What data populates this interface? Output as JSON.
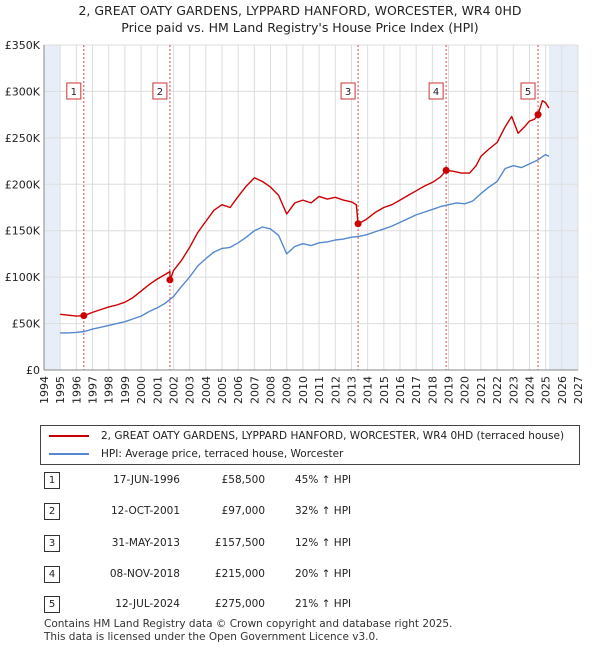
{
  "title_line1": "2, GREAT OATY GARDENS, LYPPARD HANFORD, WORCESTER, WR4 0HD",
  "title_line2": "Price paid vs. HM Land Registry's House Price Index (HPI)",
  "legend": {
    "property_label": "2, GREAT OATY GARDENS, LYPPARD HANFORD, WORCESTER, WR4 0HD (terraced house)",
    "hpi_label": "HPI: Average price, terraced house, Worcester"
  },
  "colors": {
    "property_line": "#cc0000",
    "hpi_line": "#5588cc",
    "shade": "#e8eef8",
    "vline": "#dd4444"
  },
  "chart_data": {
    "type": "line",
    "title": "Price paid vs. HM Land Registry's House Price Index (HPI)",
    "xlim": [
      1994,
      2027
    ],
    "ylim": [
      0,
      350000
    ],
    "y_ticks": [
      0,
      50000,
      100000,
      150000,
      200000,
      250000,
      300000,
      350000
    ],
    "y_tick_labels": [
      "£0",
      "£50K",
      "£100K",
      "£150K",
      "£200K",
      "£250K",
      "£300K",
      "£350K"
    ],
    "x_ticks": [
      1994,
      1995,
      1996,
      1997,
      1998,
      1999,
      2000,
      2001,
      2002,
      2003,
      2004,
      2005,
      2006,
      2007,
      2008,
      2009,
      2010,
      2011,
      2012,
      2013,
      2014,
      2015,
      2016,
      2017,
      2018,
      2019,
      2020,
      2021,
      2022,
      2023,
      2024,
      2025,
      2026,
      2027
    ],
    "grid": true,
    "shaded_ranges": [
      [
        1994.0,
        1995.0
      ],
      [
        2025.2,
        2027.0
      ]
    ],
    "series": [
      {
        "name": "2, GREAT OATY GARDENS, LYPPARD HANFORD, WORCESTER, WR4 0HD (terraced house)",
        "x": [
          1995.0,
          1995.5,
          1996.0,
          1996.46,
          1997.0,
          1997.5,
          1998.0,
          1998.5,
          1999.0,
          1999.5,
          2000.0,
          2000.5,
          2001.0,
          2001.5,
          2001.78,
          2001.79,
          2002.0,
          2002.5,
          2003.0,
          2003.5,
          2004.0,
          2004.5,
          2005.0,
          2005.5,
          2006.0,
          2006.5,
          2007.0,
          2007.5,
          2008.0,
          2008.5,
          2009.0,
          2009.5,
          2010.0,
          2010.5,
          2011.0,
          2011.5,
          2012.0,
          2012.5,
          2013.0,
          2013.3,
          2013.41,
          2013.9,
          2014.5,
          2015.0,
          2015.5,
          2016.0,
          2016.5,
          2017.0,
          2017.5,
          2018.0,
          2018.5,
          2018.85,
          2019.3,
          2019.8,
          2020.3,
          2020.7,
          2021.0,
          2021.5,
          2022.0,
          2022.5,
          2022.9,
          2023.3,
          2023.7,
          2024.0,
          2024.3,
          2024.53,
          2024.8,
          2025.0,
          2025.2
        ],
        "values": [
          60000,
          59000,
          58000,
          58500,
          62000,
          65000,
          68000,
          70000,
          73000,
          78000,
          85000,
          92000,
          98000,
          103000,
          106000,
          97000,
          107000,
          118000,
          132000,
          148000,
          160000,
          172000,
          178000,
          175000,
          187000,
          198000,
          207000,
          203000,
          197000,
          188000,
          168000,
          180000,
          183000,
          180000,
          187000,
          184000,
          186000,
          183000,
          181000,
          178000,
          157500,
          162000,
          170000,
          175000,
          178000,
          183000,
          188000,
          193000,
          198000,
          202000,
          208000,
          215000,
          214000,
          212000,
          212000,
          220000,
          230000,
          238000,
          245000,
          262000,
          273000,
          255000,
          262000,
          268000,
          270000,
          275000,
          290000,
          288000,
          282000
        ]
      },
      {
        "name": "HPI: Average price, terraced house, Worcester",
        "x": [
          1995.0,
          1995.5,
          1996.0,
          1996.5,
          1997.0,
          1997.5,
          1998.0,
          1998.5,
          1999.0,
          1999.5,
          2000.0,
          2000.5,
          2001.0,
          2001.5,
          2002.0,
          2002.5,
          2003.0,
          2003.5,
          2004.0,
          2004.5,
          2005.0,
          2005.5,
          2006.0,
          2006.5,
          2007.0,
          2007.5,
          2008.0,
          2008.5,
          2009.0,
          2009.5,
          2010.0,
          2010.5,
          2011.0,
          2011.5,
          2012.0,
          2012.5,
          2013.0,
          2013.5,
          2014.0,
          2014.5,
          2015.0,
          2015.5,
          2016.0,
          2016.5,
          2017.0,
          2017.5,
          2018.0,
          2018.5,
          2019.0,
          2019.5,
          2020.0,
          2020.5,
          2021.0,
          2021.5,
          2022.0,
          2022.5,
          2023.0,
          2023.5,
          2024.0,
          2024.5,
          2025.0,
          2025.2
        ],
        "values": [
          40000,
          40000,
          40500,
          41500,
          44000,
          46000,
          48000,
          50000,
          52000,
          55000,
          58000,
          63000,
          67000,
          72000,
          79000,
          90000,
          100000,
          112000,
          120000,
          127000,
          131000,
          132000,
          137000,
          143000,
          150000,
          154000,
          152000,
          145000,
          125000,
          133000,
          136000,
          134000,
          137000,
          138000,
          140000,
          141000,
          143000,
          144000,
          146000,
          149000,
          152000,
          155000,
          159000,
          163000,
          167000,
          170000,
          173000,
          176000,
          178000,
          180000,
          179000,
          182000,
          190000,
          197000,
          203000,
          217000,
          220000,
          218000,
          222000,
          226000,
          232000,
          230000
        ]
      }
    ],
    "sales": [
      {
        "n": "1",
        "date": "17-JUN-1996",
        "x": 1996.46,
        "price": 58500,
        "price_label": "£58,500",
        "hpi": "45% ↑ HPI"
      },
      {
        "n": "2",
        "date": "12-OCT-2001",
        "x": 2001.78,
        "price": 97000,
        "price_label": "£97,000",
        "hpi": "32% ↑ HPI"
      },
      {
        "n": "3",
        "date": "31-MAY-2013",
        "x": 2013.41,
        "price": 157500,
        "price_label": "£157,500",
        "hpi": "12% ↑ HPI"
      },
      {
        "n": "4",
        "date": "08-NOV-2018",
        "x": 2018.85,
        "price": 215000,
        "price_label": "£215,000",
        "hpi": "20% ↑ HPI"
      },
      {
        "n": "5",
        "date": "12-JUL-2024",
        "x": 2024.53,
        "price": 275000,
        "price_label": "£275,000",
        "hpi": "21% ↑ HPI"
      }
    ]
  },
  "footer_line1": "Contains HM Land Registry data © Crown copyright and database right 2025.",
  "footer_line2": "This data is licensed under the Open Government Licence v3.0."
}
